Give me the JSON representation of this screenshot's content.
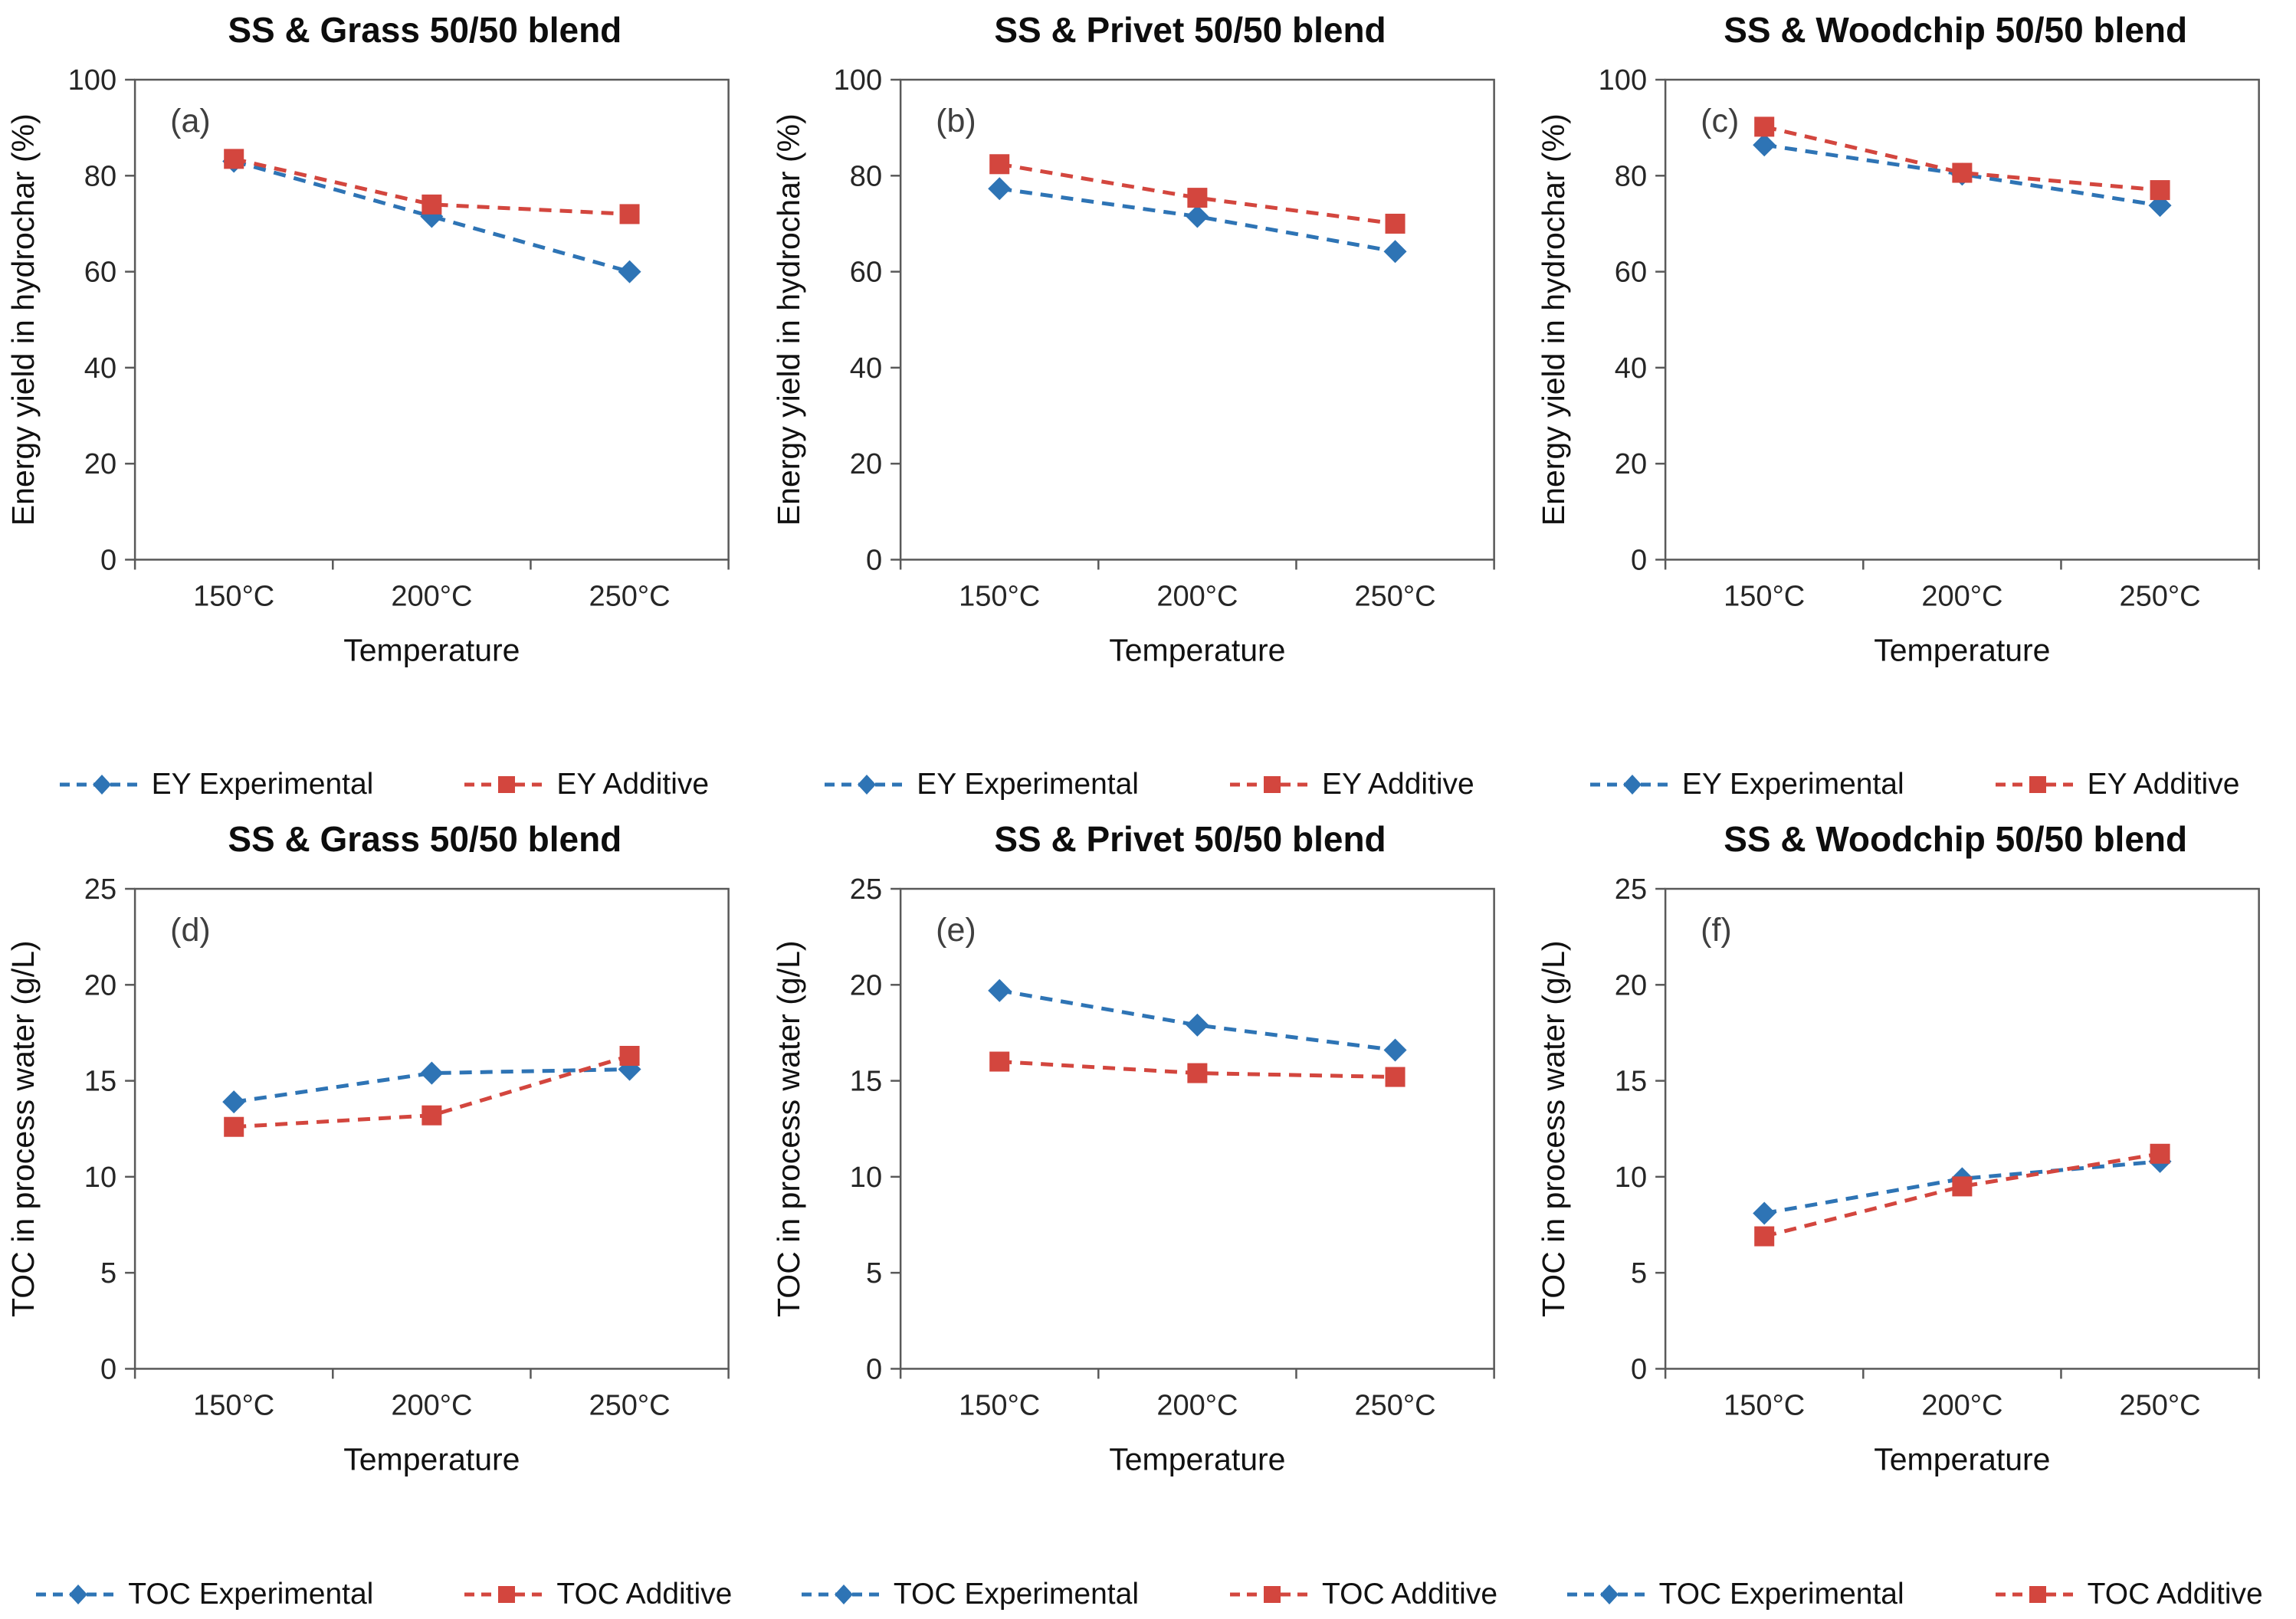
{
  "figure": {
    "background": "#ffffff",
    "text_color": "#111111",
    "axis_color": "#595959",
    "series_colors": {
      "experimental": "#2E74B5",
      "additive": "#D3463E"
    }
  },
  "chart_data": [
    {
      "type": "line",
      "panel_label": "(a)",
      "title": "SS & Grass 50/50 blend",
      "xlabel": "Temperature",
      "ylabel": "Energy yield in hydrochar (%)",
      "ylim": [
        0,
        100
      ],
      "yticks": [
        0,
        20,
        40,
        60,
        80,
        100
      ],
      "categories": [
        "150°C",
        "200°C",
        "250°C"
      ],
      "grid": false,
      "line_style": "dashed",
      "legend_position": "bottom",
      "series": [
        {
          "name": "EY Experimental",
          "marker": "diamond",
          "color_key": "experimental",
          "values": [
            83.0,
            71.5,
            60.0
          ]
        },
        {
          "name": "EY Additive",
          "marker": "square",
          "color_key": "additive",
          "values": [
            83.5,
            74.0,
            72.0
          ]
        }
      ]
    },
    {
      "type": "line",
      "panel_label": "(b)",
      "title": "SS & Privet 50/50 blend",
      "xlabel": "Temperature",
      "ylabel": "Energy yield in hydrochar (%)",
      "ylim": [
        0,
        100
      ],
      "yticks": [
        0,
        20,
        40,
        60,
        80,
        100
      ],
      "categories": [
        "150°C",
        "200°C",
        "250°C"
      ],
      "grid": false,
      "line_style": "dashed",
      "legend_position": "bottom",
      "series": [
        {
          "name": "EY Experimental",
          "marker": "diamond",
          "color_key": "experimental",
          "values": [
            77.3,
            71.5,
            64.2
          ]
        },
        {
          "name": "EY Additive",
          "marker": "square",
          "color_key": "additive",
          "values": [
            82.4,
            75.4,
            70.0
          ]
        }
      ]
    },
    {
      "type": "line",
      "panel_label": "(c)",
      "title": "SS & Woodchip 50/50 blend",
      "xlabel": "Temperature",
      "ylabel": "Energy yield in hydrochar (%)",
      "ylim": [
        0,
        100
      ],
      "yticks": [
        0,
        20,
        40,
        60,
        80,
        100
      ],
      "categories": [
        "150°C",
        "200°C",
        "250°C"
      ],
      "grid": false,
      "line_style": "dashed",
      "legend_position": "bottom",
      "series": [
        {
          "name": "EY Experimental",
          "marker": "diamond",
          "color_key": "experimental",
          "values": [
            86.4,
            80.3,
            73.8
          ]
        },
        {
          "name": "EY Additive",
          "marker": "square",
          "color_key": "additive",
          "values": [
            90.2,
            80.6,
            77.0
          ]
        }
      ]
    },
    {
      "type": "line",
      "panel_label": "(d)",
      "title": "SS & Grass 50/50 blend",
      "xlabel": "Temperature",
      "ylabel": "TOC in process water (g/L)",
      "ylim": [
        0,
        25
      ],
      "yticks": [
        0,
        5,
        10,
        15,
        20,
        25
      ],
      "categories": [
        "150°C",
        "200°C",
        "250°C"
      ],
      "grid": false,
      "line_style": "dashed",
      "legend_position": "bottom",
      "series": [
        {
          "name": "TOC Experimental",
          "marker": "diamond",
          "color_key": "experimental",
          "values": [
            13.9,
            15.4,
            15.6
          ]
        },
        {
          "name": "TOC Additive",
          "marker": "square",
          "color_key": "additive",
          "values": [
            12.6,
            13.2,
            16.3
          ]
        }
      ]
    },
    {
      "type": "line",
      "panel_label": "(e)",
      "title": "SS & Privet 50/50 blend",
      "xlabel": "Temperature",
      "ylabel": "TOC in process water (g/L)",
      "ylim": [
        0,
        25
      ],
      "yticks": [
        0,
        5,
        10,
        15,
        20,
        25
      ],
      "categories": [
        "150°C",
        "200°C",
        "250°C"
      ],
      "grid": false,
      "line_style": "dashed",
      "legend_position": "bottom",
      "series": [
        {
          "name": "TOC Experimental",
          "marker": "diamond",
          "color_key": "experimental",
          "values": [
            19.7,
            17.9,
            16.6
          ]
        },
        {
          "name": "TOC Additive",
          "marker": "square",
          "color_key": "additive",
          "values": [
            16.0,
            15.4,
            15.2
          ]
        }
      ]
    },
    {
      "type": "line",
      "panel_label": "(f)",
      "title": "SS & Woodchip 50/50 blend",
      "xlabel": "Temperature",
      "ylabel": "TOC in process water (g/L)",
      "ylim": [
        0,
        25
      ],
      "yticks": [
        0,
        5,
        10,
        15,
        20,
        25
      ],
      "categories": [
        "150°C",
        "200°C",
        "250°C"
      ],
      "grid": false,
      "line_style": "dashed",
      "legend_position": "bottom",
      "series": [
        {
          "name": "TOC Experimental",
          "marker": "diamond",
          "color_key": "experimental",
          "values": [
            8.1,
            9.9,
            10.8
          ]
        },
        {
          "name": "TOC Additive",
          "marker": "square",
          "color_key": "additive",
          "values": [
            6.9,
            9.5,
            11.2
          ]
        }
      ]
    }
  ]
}
